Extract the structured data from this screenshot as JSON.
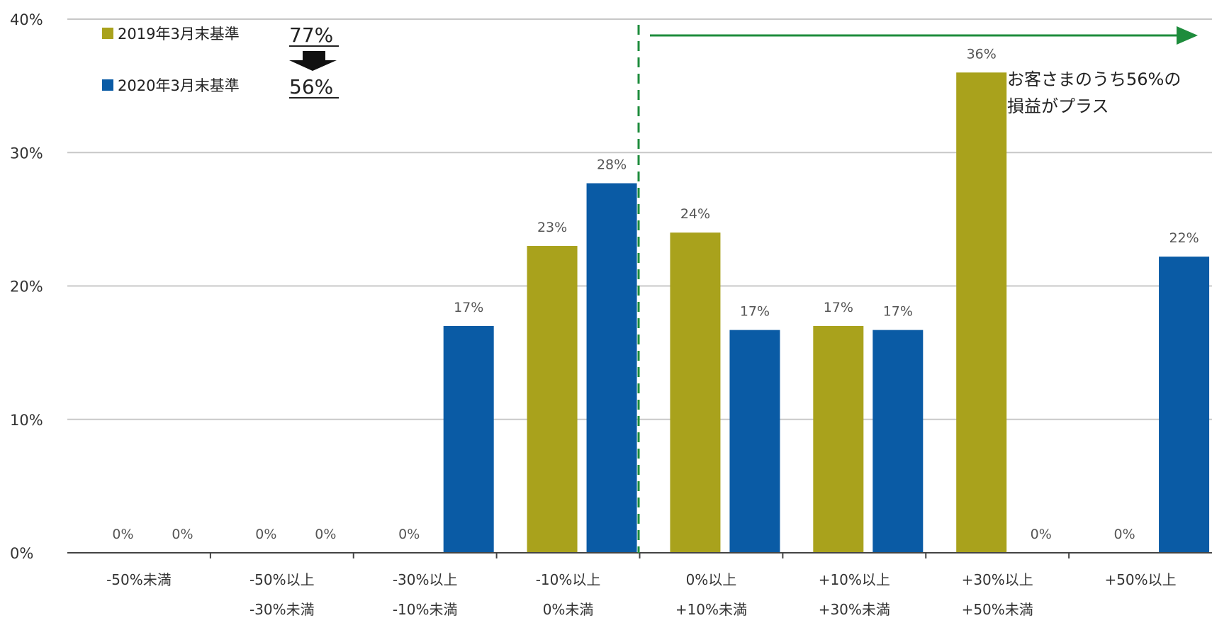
{
  "chart_data": {
    "type": "bar",
    "categories": [
      [
        "-50%未満",
        ""
      ],
      [
        "-50%以上",
        "-30%未満"
      ],
      [
        "-30%以上",
        "-10%未満"
      ],
      [
        "-10%以上",
        "0%未満"
      ],
      [
        "0%以上",
        "+10%未満"
      ],
      [
        "+10%以上",
        "+30%未満"
      ],
      [
        "+30%以上",
        "+50%未満"
      ],
      [
        "+50%以上",
        ""
      ]
    ],
    "series": [
      {
        "name": "2019年3月末基準",
        "color": "#A9A21C",
        "values": [
          0,
          0,
          0,
          23,
          24,
          17,
          36,
          0
        ],
        "labels": [
          "0%",
          "0%",
          "0%",
          "23%",
          "24%",
          "17%",
          "36%",
          "0%"
        ]
      },
      {
        "name": "2020年3月末基準",
        "color": "#0A5BA5",
        "values": [
          0,
          0,
          17,
          27.7,
          16.7,
          16.7,
          0,
          22.2
        ],
        "labels": [
          "0%",
          "0%",
          "17%",
          "28%",
          "17%",
          "17%",
          "0%",
          "22%"
        ]
      }
    ],
    "yticks": [
      "0%",
      "10%",
      "20%",
      "30%",
      "40%"
    ],
    "ylim": [
      0,
      40
    ],
    "grid": true,
    "legend": {
      "placement": "top-left",
      "series_pct": [
        "77%",
        "56%"
      ],
      "arrow_icon": "down-arrow-icon"
    },
    "annotation": {
      "line1": "お客さまのうち56%の",
      "line2": "損益がプラス"
    },
    "threshold_color": "#1E8C3C"
  }
}
